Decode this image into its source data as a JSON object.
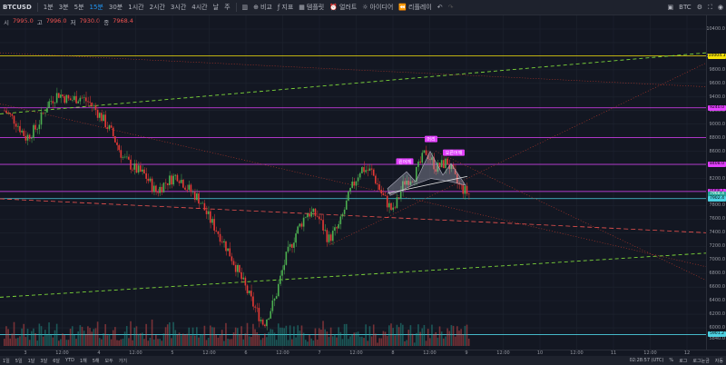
{
  "toolbar": {
    "symbol": "BTCUSD",
    "intervals": [
      "1분",
      "3분",
      "5분",
      "15분",
      "30분",
      "1시간",
      "2시간",
      "3시간",
      "4시간",
      "날",
      "주"
    ],
    "active_interval": "15분",
    "compare": "비교",
    "indicator": "지표",
    "template": "템플릿",
    "alert": "얼러트",
    "idea": "아이디어",
    "replay": "리플레이",
    "ticker": "BTC"
  },
  "ohlc": {
    "open_label": "시",
    "open": "7995.0",
    "high_label": "고",
    "high": "7996.0",
    "low_label": "저",
    "low": "7930.0",
    "close_label": "종",
    "close": "7968.4"
  },
  "price_axis": {
    "ticks": [
      "10400.0",
      "10000.0",
      "9800.0",
      "9600.0",
      "9400.0",
      "9200.0",
      "9000.0",
      "8800.0",
      "8600.0",
      "8400.0",
      "8200.0",
      "8000.0",
      "7800.0",
      "7600.0",
      "7400.0",
      "7200.0",
      "7000.0",
      "6800.0",
      "6600.0",
      "6400.0",
      "6200.0",
      "6000.0",
      "5840.0"
    ],
    "tags": [
      {
        "label": "10004.3",
        "color": "#f5e20a",
        "text": "#000000"
      },
      {
        "label": "9240.0",
        "color": "#e040fb",
        "text": "#000000"
      },
      {
        "label": "8408.0",
        "color": "#e040fb",
        "text": "#000000"
      },
      {
        "label": "8008.1",
        "color": "#e040fb",
        "text": "#000000"
      },
      {
        "label": "7968.4",
        "color": "#26a69a",
        "text": "#ffffff"
      },
      {
        "label": "7902.4",
        "color": "#4dd0e1",
        "text": "#000000"
      },
      {
        "label": "5901.2",
        "color": "#4dd0e1",
        "text": "#000000"
      }
    ]
  },
  "patterns": {
    "left_shoulder": "왼어깨",
    "head": "머리",
    "right_shoulder": "오른어깨"
  },
  "time_axis": {
    "ticks": [
      "3",
      "12:00",
      "4",
      "12:00",
      "5",
      "12:00",
      "6",
      "12:00",
      "7",
      "12:00",
      "8",
      "12:00",
      "9",
      "12:00",
      "10",
      "12:00",
      "11",
      "12:00",
      "12"
    ]
  },
  "bottom_bar": {
    "ranges": [
      "1일",
      "5일",
      "1달",
      "3달",
      "6달",
      "YTD",
      "1해",
      "5해",
      "모두",
      "가기"
    ],
    "time": "02:28:57 (UTC)",
    "percent": "%",
    "log": "로그",
    "auto": "자동",
    "log_scale": "로그눈금"
  },
  "chart_data": {
    "type": "candlestick",
    "ticker": "BTCUSD",
    "interval": "15분",
    "x_labels": [
      "3",
      "12:00",
      "4",
      "12:00",
      "5",
      "12:00",
      "6",
      "12:00",
      "7",
      "12:00",
      "8",
      "12:00",
      "9"
    ],
    "y_range": [
      5840,
      10400
    ],
    "price_path": [
      [
        0,
        9200
      ],
      [
        1,
        9050
      ],
      [
        2,
        8800
      ],
      [
        3,
        8950
      ],
      [
        4,
        9300
      ],
      [
        5,
        9450
      ],
      [
        6,
        9350
      ],
      [
        7,
        9400
      ],
      [
        8,
        9300
      ],
      [
        9,
        9100
      ],
      [
        10,
        8850
      ],
      [
        11,
        8500
      ],
      [
        12,
        8350
      ],
      [
        13,
        8250
      ],
      [
        14,
        8000
      ],
      [
        15,
        8150
      ],
      [
        16,
        8250
      ],
      [
        17,
        8050
      ],
      [
        18,
        7900
      ],
      [
        19,
        7600
      ],
      [
        20,
        7350
      ],
      [
        21,
        7050
      ],
      [
        22,
        6700
      ],
      [
        23,
        6350
      ],
      [
        24,
        6050
      ],
      [
        25,
        6400
      ],
      [
        26,
        7000
      ],
      [
        27,
        7400
      ],
      [
        28,
        7700
      ],
      [
        29,
        7650
      ],
      [
        30,
        7300
      ],
      [
        31,
        7500
      ],
      [
        32,
        8000
      ],
      [
        33,
        8350
      ],
      [
        34,
        8300
      ],
      [
        35,
        7950
      ],
      [
        36,
        7700
      ],
      [
        37,
        8150
      ],
      [
        38,
        8250
      ],
      [
        39,
        8600
      ],
      [
        40,
        8350
      ],
      [
        41,
        8450
      ],
      [
        42,
        8100
      ],
      [
        43,
        7968
      ]
    ],
    "horizontal_levels": [
      10004.3,
      9240.0,
      8800.0,
      8408.0,
      8008.1,
      7902.4,
      5901.2
    ]
  }
}
